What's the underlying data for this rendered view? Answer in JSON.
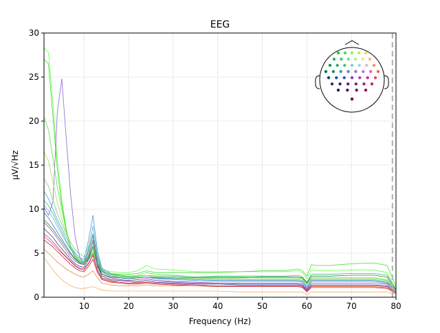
{
  "chart_data": {
    "type": "line",
    "title": "EEG",
    "xlabel": "Frequency (Hz)",
    "ylabel": "µV/√Hz",
    "xlim": [
      1,
      80
    ],
    "ylim": [
      0,
      30
    ],
    "x_ticks": [
      10,
      20,
      30,
      40,
      50,
      60,
      70,
      80
    ],
    "y_ticks": [
      0,
      5,
      10,
      15,
      20,
      25,
      30
    ],
    "grid": true,
    "grid_style": "dotted",
    "inset": "sensor-topomap",
    "inset_position": "top-right",
    "marker_line": {
      "x": 79.2,
      "style": "dashed",
      "color": "#b0b0b0"
    },
    "x": [
      1,
      2,
      3,
      4,
      5,
      6,
      7,
      8,
      9,
      10,
      11,
      12,
      13,
      14,
      16,
      18,
      20,
      22,
      24,
      26,
      30,
      35,
      40,
      45,
      50,
      55,
      58,
      59,
      60,
      61,
      62,
      65,
      70,
      75,
      78,
      80
    ],
    "series": [
      {
        "color": "#66ff44",
        "values": [
          28.3,
          27.8,
          22.0,
          15.5,
          11.0,
          7.8,
          5.6,
          4.6,
          4.1,
          3.9,
          4.4,
          5.2,
          3.9,
          3.1,
          2.9,
          2.8,
          2.8,
          3.0,
          3.6,
          3.2,
          3.1,
          2.9,
          2.9,
          2.9,
          2.9,
          2.9,
          3.0,
          2.8,
          2.1,
          3.1,
          3.0,
          3.0,
          3.1,
          3.1,
          2.8,
          1.1
        ]
      },
      {
        "color": "#3cdd30",
        "values": [
          27.0,
          26.5,
          20.5,
          14.5,
          10.5,
          7.6,
          5.5,
          4.5,
          4.0,
          3.8,
          4.3,
          5.0,
          3.7,
          2.9,
          2.7,
          2.6,
          2.6,
          2.7,
          3.0,
          2.8,
          2.8,
          2.8,
          2.8,
          2.9,
          3.0,
          3.0,
          3.2,
          3.0,
          2.4,
          3.7,
          3.6,
          3.6,
          3.8,
          3.9,
          3.6,
          1.3
        ]
      },
      {
        "color": "#8866cc",
        "values": [
          10.2,
          9.3,
          10.8,
          21.0,
          24.8,
          18.0,
          11.5,
          6.8,
          4.6,
          3.8,
          5.3,
          7.0,
          3.4,
          2.6,
          2.2,
          2.0,
          1.9,
          2.0,
          2.1,
          1.9,
          1.7,
          1.6,
          1.6,
          1.5,
          1.5,
          1.5,
          1.5,
          1.4,
          0.9,
          1.4,
          1.4,
          1.4,
          1.4,
          1.4,
          1.3,
          0.5
        ]
      },
      {
        "color": "#55e044",
        "values": [
          20.5,
          19.0,
          15.8,
          12.5,
          10.0,
          7.5,
          5.8,
          4.8,
          4.2,
          3.9,
          4.6,
          6.2,
          3.8,
          2.9,
          2.6,
          2.5,
          2.4,
          2.5,
          2.8,
          2.6,
          2.5,
          2.3,
          2.3,
          2.3,
          2.2,
          2.2,
          2.2,
          2.1,
          1.6,
          2.2,
          2.2,
          2.2,
          2.2,
          2.2,
          2.0,
          0.8
        ]
      },
      {
        "color": "#4499cc",
        "values": [
          12.0,
          11.2,
          10.0,
          8.8,
          7.8,
          6.8,
          5.8,
          5.0,
          4.5,
          4.3,
          6.5,
          9.3,
          5.2,
          3.3,
          2.7,
          2.5,
          2.3,
          2.4,
          2.5,
          2.3,
          2.1,
          2.0,
          1.9,
          1.9,
          1.9,
          1.9,
          1.9,
          1.8,
          1.2,
          1.9,
          1.9,
          1.9,
          1.9,
          1.9,
          1.7,
          0.7
        ]
      },
      {
        "color": "#7bcc88",
        "values": [
          13.5,
          12.6,
          11.0,
          9.5,
          8.3,
          7.2,
          6.2,
          5.4,
          4.9,
          4.6,
          5.8,
          8.0,
          4.8,
          3.2,
          2.7,
          2.5,
          2.3,
          2.4,
          2.5,
          2.3,
          2.2,
          2.1,
          2.0,
          2.0,
          2.0,
          2.0,
          2.0,
          1.9,
          1.4,
          2.0,
          2.0,
          2.0,
          2.0,
          2.0,
          1.8,
          0.7
        ]
      },
      {
        "color": "#5566bb",
        "values": [
          9.6,
          9.0,
          8.2,
          7.4,
          6.6,
          5.8,
          5.0,
          4.4,
          4.0,
          3.9,
          5.2,
          7.2,
          4.3,
          2.9,
          2.4,
          2.2,
          2.1,
          2.2,
          2.3,
          2.1,
          2.0,
          1.9,
          1.8,
          1.8,
          1.8,
          1.8,
          1.8,
          1.7,
          1.1,
          1.8,
          1.8,
          1.8,
          1.8,
          1.8,
          1.6,
          0.6
        ]
      },
      {
        "color": "#9944aa",
        "values": [
          8.5,
          8.0,
          7.4,
          6.7,
          6.0,
          5.3,
          4.6,
          4.1,
          3.8,
          3.7,
          4.8,
          6.5,
          3.9,
          2.6,
          2.2,
          2.0,
          1.9,
          2.0,
          2.1,
          1.9,
          1.8,
          1.7,
          1.6,
          1.6,
          1.6,
          1.6,
          1.6,
          1.5,
          1.0,
          1.6,
          1.6,
          1.6,
          1.6,
          1.6,
          1.5,
          0.6
        ]
      },
      {
        "color": "#2a4488",
        "values": [
          7.8,
          7.3,
          6.8,
          6.1,
          5.5,
          4.9,
          4.3,
          3.8,
          3.5,
          3.4,
          4.3,
          5.6,
          3.5,
          2.4,
          2.0,
          1.9,
          1.8,
          1.8,
          1.9,
          1.7,
          1.6,
          1.5,
          1.5,
          1.4,
          1.4,
          1.4,
          1.4,
          1.3,
          0.8,
          1.4,
          1.4,
          1.4,
          1.4,
          1.4,
          1.3,
          0.5
        ]
      },
      {
        "color": "#cc3355",
        "values": [
          7.2,
          6.8,
          6.3,
          5.7,
          5.1,
          4.6,
          4.1,
          3.6,
          3.3,
          3.2,
          3.9,
          4.9,
          3.1,
          2.2,
          1.9,
          1.7,
          1.6,
          1.7,
          1.7,
          1.6,
          1.5,
          1.4,
          1.3,
          1.3,
          1.3,
          1.3,
          1.3,
          1.2,
          0.7,
          1.2,
          1.2,
          1.2,
          1.2,
          1.2,
          1.1,
          0.4
        ]
      },
      {
        "color": "#bb2222",
        "values": [
          6.5,
          6.1,
          5.7,
          5.2,
          4.7,
          4.2,
          3.7,
          3.3,
          3.0,
          2.9,
          3.5,
          4.3,
          2.8,
          2.0,
          1.7,
          1.6,
          1.5,
          1.5,
          1.6,
          1.5,
          1.4,
          1.3,
          1.2,
          1.2,
          1.2,
          1.2,
          1.2,
          1.1,
          0.6,
          1.1,
          1.1,
          1.1,
          1.1,
          1.1,
          1.0,
          0.4
        ]
      },
      {
        "color": "#ee8833",
        "values": [
          5.5,
          5.0,
          4.5,
          4.0,
          3.6,
          3.2,
          2.9,
          2.6,
          2.4,
          2.3,
          2.6,
          3.0,
          2.2,
          1.6,
          1.4,
          1.3,
          1.3,
          1.3,
          1.4,
          1.3,
          1.3,
          1.3,
          1.3,
          1.3,
          1.3,
          1.3,
          1.3,
          1.2,
          0.7,
          1.2,
          1.2,
          1.2,
          1.2,
          1.2,
          1.1,
          0.4
        ]
      },
      {
        "color": "#f0b066",
        "values": [
          4.5,
          3.8,
          3.1,
          2.5,
          2.0,
          1.6,
          1.3,
          1.1,
          1.0,
          1.0,
          1.1,
          1.2,
          1.0,
          0.8,
          0.7,
          0.7,
          0.7,
          0.7,
          0.7,
          0.7,
          0.7,
          0.7,
          0.7,
          0.6,
          0.6,
          0.6,
          0.6,
          0.6,
          0.3,
          0.6,
          0.6,
          0.6,
          0.6,
          0.6,
          0.6,
          0.3
        ]
      },
      {
        "color": "#dd4488",
        "values": [
          6.9,
          6.5,
          6.0,
          5.5,
          5.0,
          4.5,
          4.0,
          3.5,
          3.2,
          3.1,
          3.8,
          4.7,
          3.0,
          2.1,
          1.8,
          1.7,
          1.6,
          1.6,
          1.7,
          1.6,
          1.5,
          1.4,
          1.3,
          1.3,
          1.3,
          1.3,
          1.3,
          1.2,
          0.7,
          1.3,
          1.3,
          1.3,
          1.3,
          1.3,
          1.2,
          0.5
        ]
      },
      {
        "color": "#33bb77",
        "values": [
          11.0,
          10.4,
          9.5,
          8.4,
          7.4,
          6.4,
          5.5,
          4.8,
          4.3,
          4.1,
          5.3,
          7.2,
          4.4,
          3.0,
          2.6,
          2.4,
          2.3,
          2.3,
          2.5,
          2.4,
          2.4,
          2.3,
          2.4,
          2.4,
          2.4,
          2.4,
          2.5,
          2.3,
          1.7,
          2.6,
          2.6,
          2.6,
          2.7,
          2.7,
          2.5,
          0.9
        ]
      },
      {
        "color": "#66bbee",
        "values": [
          10.5,
          9.8,
          9.0,
          8.0,
          7.1,
          6.2,
          5.4,
          4.7,
          4.2,
          4.0,
          5.6,
          8.1,
          4.7,
          3.1,
          2.5,
          2.3,
          2.2,
          2.2,
          2.3,
          2.2,
          2.0,
          1.9,
          1.8,
          1.8,
          1.8,
          1.8,
          1.8,
          1.7,
          1.1,
          1.8,
          1.8,
          1.8,
          1.8,
          1.8,
          1.6,
          0.6
        ]
      },
      {
        "color": "#aadd55",
        "values": [
          16.5,
          15.5,
          13.0,
          10.8,
          8.9,
          7.2,
          5.8,
          4.8,
          4.2,
          3.9,
          4.5,
          5.6,
          3.6,
          2.7,
          2.4,
          2.3,
          2.2,
          2.3,
          2.5,
          2.3,
          2.2,
          2.1,
          2.1,
          2.1,
          2.1,
          2.1,
          2.1,
          2.0,
          1.5,
          2.1,
          2.1,
          2.1,
          2.1,
          2.1,
          1.9,
          0.7
        ]
      },
      {
        "color": "#228844",
        "values": [
          8.8,
          8.3,
          7.7,
          7.0,
          6.3,
          5.6,
          4.9,
          4.3,
          3.9,
          3.7,
          4.5,
          5.8,
          3.7,
          2.6,
          2.3,
          2.2,
          2.1,
          2.2,
          2.3,
          2.2,
          2.2,
          2.2,
          2.2,
          2.2,
          2.3,
          2.3,
          2.3,
          2.2,
          1.6,
          2.4,
          2.4,
          2.4,
          2.5,
          2.5,
          2.3,
          0.8
        ]
      }
    ]
  },
  "topomap": {
    "colors": [
      "#22cc44",
      "#55dd44",
      "#99ee44",
      "#ccee44",
      "#eedd55",
      "#22bb55",
      "#44cc66",
      "#77dd88",
      "#aaee99",
      "#ddee88",
      "#eebb66",
      "#119955",
      "#33aa77",
      "#55bb99",
      "#88cccc",
      "#aaccee",
      "#ddbbcc",
      "#ee9955",
      "#117744",
      "#228866",
      "#3399aa",
      "#5588cc",
      "#8877dd",
      "#bb77cc",
      "#dd66aa",
      "#ee6655",
      "#114466",
      "#225599",
      "#4455bb",
      "#7744cc",
      "#aa44bb",
      "#cc3388",
      "#ee4466",
      "#223366",
      "#332277",
      "#552288",
      "#882277",
      "#aa2266",
      "#cc2255",
      "#331155",
      "#551155",
      "#771144",
      "#991144",
      "#660044"
    ]
  }
}
